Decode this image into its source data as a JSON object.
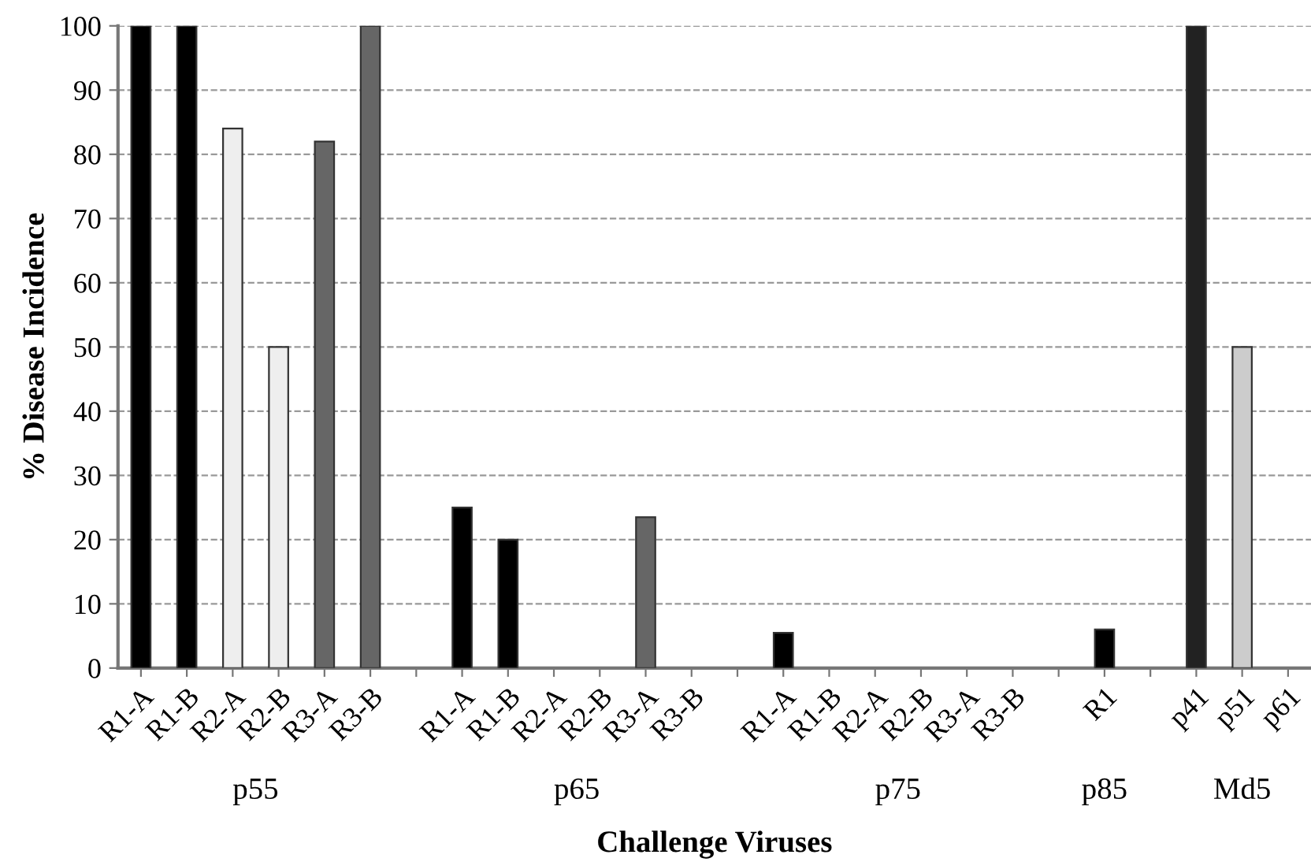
{
  "chart_data": {
    "type": "bar",
    "xlabel": "Challenge Viruses",
    "ylabel": "% Disease Incidence",
    "categories": [
      "R1-A",
      "R1-B",
      "R2-A",
      "R2-B",
      "R3-A",
      "R3-B",
      null,
      "R1-A",
      "R1-B",
      "R2-A",
      "R2-B",
      "R3-A",
      "R3-B",
      null,
      "R1-A",
      "R1-B",
      "R2-A",
      "R2-B",
      "R3-A",
      "R3-B",
      null,
      "R1",
      null,
      "p41",
      "p51",
      "p61"
    ],
    "values": [
      100,
      100,
      84,
      50,
      82,
      100,
      null,
      25,
      20,
      0,
      0,
      23.5,
      0,
      null,
      5.5,
      0,
      0,
      0,
      0,
      0,
      null,
      6,
      null,
      100,
      50,
      0
    ],
    "colors": [
      "#000000",
      "#000000",
      "#eeeeee",
      "#eeeeee",
      "#666666",
      "#666666",
      "#ffffff",
      "#000000",
      "#000000",
      "#eeeeee",
      "#eeeeee",
      "#666666",
      "#666666",
      "#ffffff",
      "#000000",
      "#000000",
      "#eeeeee",
      "#eeeeee",
      "#666666",
      "#666666",
      "#ffffff",
      "#000000",
      "#ffffff",
      "#222222",
      "#cccccc",
      "#cccccc"
    ],
    "annotations": [
      "p55",
      "p65",
      "p75",
      "p85",
      "Md5"
    ],
    "ylim": [
      0,
      100
    ],
    "yticks": [
      0,
      10,
      20,
      30,
      40,
      50,
      60,
      70,
      80,
      90,
      100
    ],
    "grid": "y",
    "line_style": "dashed"
  }
}
